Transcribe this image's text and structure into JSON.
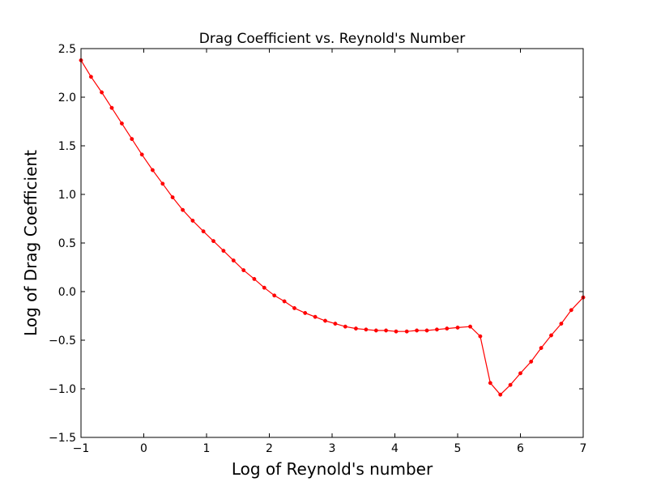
{
  "chart_data": {
    "type": "line",
    "title": "Drag Coefficient vs. Reynold's Number",
    "xlabel": "Log of Reynold's number",
    "ylabel": "Log of Drag Coefficient",
    "xlim": [
      -1,
      7
    ],
    "ylim": [
      -1.5,
      2.5
    ],
    "x_ticks": [
      -1,
      0,
      1,
      2,
      3,
      4,
      5,
      6,
      7
    ],
    "x_tick_labels": [
      "−1",
      "0",
      "1",
      "2",
      "3",
      "4",
      "5",
      "6",
      "7"
    ],
    "y_ticks": [
      -1.5,
      -1.0,
      -0.5,
      0.0,
      0.5,
      1.0,
      1.5,
      2.0,
      2.5
    ],
    "y_tick_labels": [
      "−1.5",
      "−1.0",
      "−0.5",
      "0.0",
      "0.5",
      "1.0",
      "1.5",
      "2.0",
      "2.5"
    ],
    "grid": false,
    "legend": "none",
    "series": [
      {
        "color": "#ff0000",
        "marker": "dot",
        "x": [
          -1.0,
          -0.84,
          -0.67,
          -0.51,
          -0.35,
          -0.19,
          -0.03,
          0.14,
          0.3,
          0.46,
          0.62,
          0.78,
          0.95,
          1.11,
          1.27,
          1.43,
          1.59,
          1.76,
          1.92,
          2.08,
          2.24,
          2.4,
          2.57,
          2.73,
          2.89,
          3.05,
          3.21,
          3.38,
          3.54,
          3.7,
          3.86,
          4.02,
          4.19,
          4.35,
          4.51,
          4.67,
          4.83,
          5.0,
          5.2,
          5.36,
          5.52,
          5.68,
          5.84,
          6.0,
          6.17,
          6.33,
          6.49,
          6.65,
          6.81,
          7.0
        ],
        "y": [
          2.38,
          2.21,
          2.05,
          1.89,
          1.73,
          1.57,
          1.41,
          1.25,
          1.11,
          0.97,
          0.84,
          0.73,
          0.62,
          0.52,
          0.42,
          0.32,
          0.22,
          0.13,
          0.04,
          -0.04,
          -0.1,
          -0.17,
          -0.22,
          -0.26,
          -0.3,
          -0.33,
          -0.36,
          -0.38,
          -0.39,
          -0.4,
          -0.4,
          -0.41,
          -0.41,
          -0.4,
          -0.4,
          -0.39,
          -0.38,
          -0.37,
          -0.36,
          -0.46,
          -0.94,
          -1.06,
          -0.96,
          -0.84,
          -0.72,
          -0.58,
          -0.45,
          -0.33,
          -0.19,
          -0.06
        ]
      }
    ]
  }
}
